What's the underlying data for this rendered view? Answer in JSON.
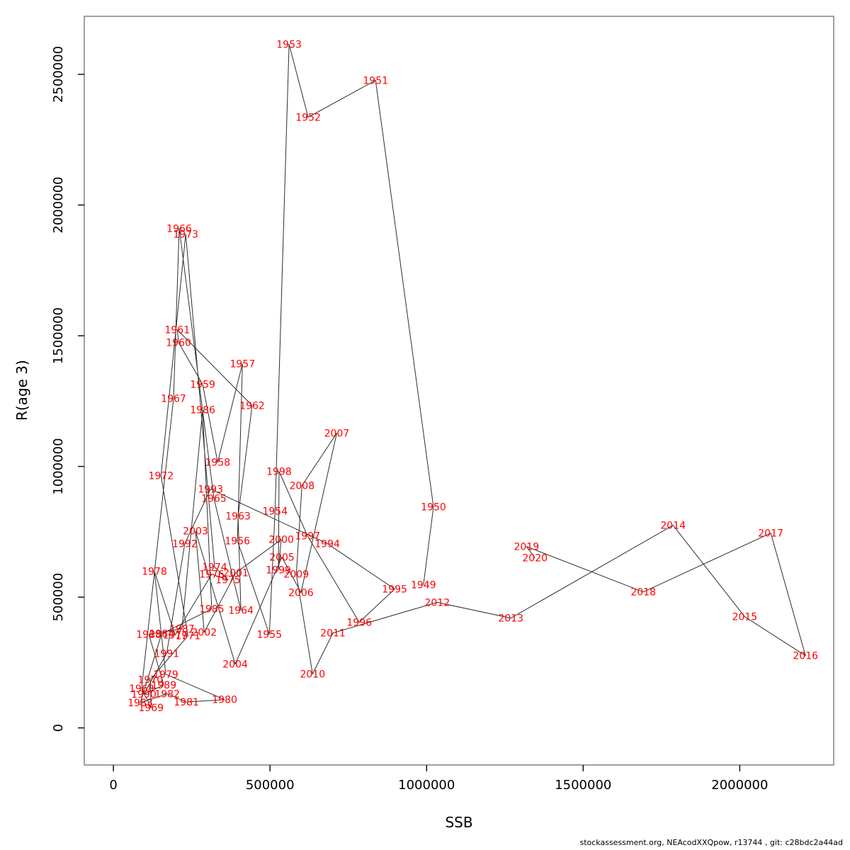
{
  "page": {
    "background": "#ffffff"
  },
  "footer": {
    "text": "stockassessment.org, NEAcodXXQpow, r13744 , git: c28bdc2a44ad"
  },
  "chart_data": {
    "type": "scatter",
    "connected": true,
    "title": "",
    "xlabel": "SSB",
    "ylabel": "R(age 3)",
    "xlim": [
      -93000,
      2300000
    ],
    "ylim": [
      -142000,
      2722000
    ],
    "x_ticks": [
      0,
      500000,
      1000000,
      1500000,
      2000000
    ],
    "y_ticks": [
      0,
      500000,
      1000000,
      1500000,
      2000000,
      2500000
    ],
    "grid": false,
    "legend": "none",
    "point_label_color": "#ff0000",
    "line_color": "#2e2e2e",
    "box_color": "#808080",
    "series": [
      {
        "name": "recruitment-vs-ssb-by-year",
        "points": [
          {
            "year": 1949,
            "ssb": 990000,
            "r": 547000
          },
          {
            "year": 1950,
            "ssb": 1022000,
            "r": 845000
          },
          {
            "year": 1951,
            "ssb": 837000,
            "r": 2477000
          },
          {
            "year": 1952,
            "ssb": 622000,
            "r": 2336000
          },
          {
            "year": 1953,
            "ssb": 561000,
            "r": 2615000
          },
          {
            "year": 1954,
            "ssb": 516000,
            "r": 829000
          },
          {
            "year": 1955,
            "ssb": 498000,
            "r": 358000
          },
          {
            "year": 1956,
            "ssb": 396000,
            "r": 715000
          },
          {
            "year": 1957,
            "ssb": 412000,
            "r": 1393000
          },
          {
            "year": 1958,
            "ssb": 333000,
            "r": 1016000
          },
          {
            "year": 1959,
            "ssb": 285000,
            "r": 1314000
          },
          {
            "year": 1960,
            "ssb": 208000,
            "r": 1474000
          },
          {
            "year": 1961,
            "ssb": 204000,
            "r": 1523000
          },
          {
            "year": 1962,
            "ssb": 443000,
            "r": 1233000
          },
          {
            "year": 1963,
            "ssb": 398000,
            "r": 810000
          },
          {
            "year": 1964,
            "ssb": 407000,
            "r": 450000
          },
          {
            "year": 1965,
            "ssb": 321000,
            "r": 878000
          },
          {
            "year": 1966,
            "ssb": 210000,
            "r": 1911000
          },
          {
            "year": 1967,
            "ssb": 192000,
            "r": 1260000
          },
          {
            "year": 1968,
            "ssb": 90000,
            "r": 150000
          },
          {
            "year": 1969,
            "ssb": 120000,
            "r": 77000
          },
          {
            "year": 1970,
            "ssb": 118000,
            "r": 185000
          },
          {
            "year": 1971,
            "ssb": 238000,
            "r": 352000
          },
          {
            "year": 1972,
            "ssb": 152000,
            "r": 965000
          },
          {
            "year": 1973,
            "ssb": 231000,
            "r": 1889000
          },
          {
            "year": 1974,
            "ssb": 323000,
            "r": 615000
          },
          {
            "year": 1975,
            "ssb": 366000,
            "r": 566000
          },
          {
            "year": 1976,
            "ssb": 314000,
            "r": 588000
          },
          {
            "year": 1977,
            "ssb": 197000,
            "r": 355000
          },
          {
            "year": 1978,
            "ssb": 131000,
            "r": 599000
          },
          {
            "year": 1979,
            "ssb": 167000,
            "r": 205000
          },
          {
            "year": 1980,
            "ssb": 355000,
            "r": 108000
          },
          {
            "year": 1981,
            "ssb": 233000,
            "r": 99000
          },
          {
            "year": 1982,
            "ssb": 172000,
            "r": 130000
          },
          {
            "year": 1983,
            "ssb": 86000,
            "r": 96000
          },
          {
            "year": 1984,
            "ssb": 154000,
            "r": 360000
          },
          {
            "year": 1985,
            "ssb": 314000,
            "r": 455000
          },
          {
            "year": 1986,
            "ssb": 285000,
            "r": 1217000
          },
          {
            "year": 1987,
            "ssb": 219000,
            "r": 379000
          },
          {
            "year": 1988,
            "ssb": 113000,
            "r": 358000
          },
          {
            "year": 1989,
            "ssb": 161000,
            "r": 164000
          },
          {
            "year": 1990,
            "ssb": 97000,
            "r": 129000
          },
          {
            "year": 1991,
            "ssb": 170000,
            "r": 285000
          },
          {
            "year": 1992,
            "ssb": 228000,
            "r": 705000
          },
          {
            "year": 1993,
            "ssb": 310000,
            "r": 913000
          },
          {
            "year": 1994,
            "ssb": 683000,
            "r": 705000
          },
          {
            "year": 1995,
            "ssb": 898000,
            "r": 531000
          },
          {
            "year": 1996,
            "ssb": 785000,
            "r": 404000
          },
          {
            "year": 1997,
            "ssb": 620000,
            "r": 734000
          },
          {
            "year": 1998,
            "ssb": 529000,
            "r": 981000
          },
          {
            "year": 1999,
            "ssb": 527000,
            "r": 604000
          },
          {
            "year": 2000,
            "ssb": 536000,
            "r": 721000
          },
          {
            "year": 2001,
            "ssb": 391000,
            "r": 593000
          },
          {
            "year": 2002,
            "ssb": 290000,
            "r": 366000
          },
          {
            "year": 2003,
            "ssb": 262000,
            "r": 753000
          },
          {
            "year": 2004,
            "ssb": 389000,
            "r": 244000
          },
          {
            "year": 2005,
            "ssb": 538000,
            "r": 653000
          },
          {
            "year": 2006,
            "ssb": 599000,
            "r": 518000
          },
          {
            "year": 2007,
            "ssb": 713000,
            "r": 1127000
          },
          {
            "year": 2008,
            "ssb": 602000,
            "r": 927000
          },
          {
            "year": 2009,
            "ssb": 584000,
            "r": 588000
          },
          {
            "year": 2010,
            "ssb": 636000,
            "r": 206000
          },
          {
            "year": 2011,
            "ssb": 701000,
            "r": 363000
          },
          {
            "year": 2012,
            "ssb": 1034000,
            "r": 480000
          },
          {
            "year": 2013,
            "ssb": 1269000,
            "r": 420000
          },
          {
            "year": 2014,
            "ssb": 1787000,
            "r": 775000
          },
          {
            "year": 2015,
            "ssb": 2016000,
            "r": 425000
          },
          {
            "year": 2016,
            "ssb": 2210000,
            "r": 276000
          },
          {
            "year": 2017,
            "ssb": 2099000,
            "r": 745000
          },
          {
            "year": 2018,
            "ssb": 1692000,
            "r": 520000
          },
          {
            "year": 2019,
            "ssb": 1319000,
            "r": 694000
          },
          {
            "year": 2020,
            "ssb": 1346000,
            "r": 650000
          }
        ]
      }
    ]
  }
}
